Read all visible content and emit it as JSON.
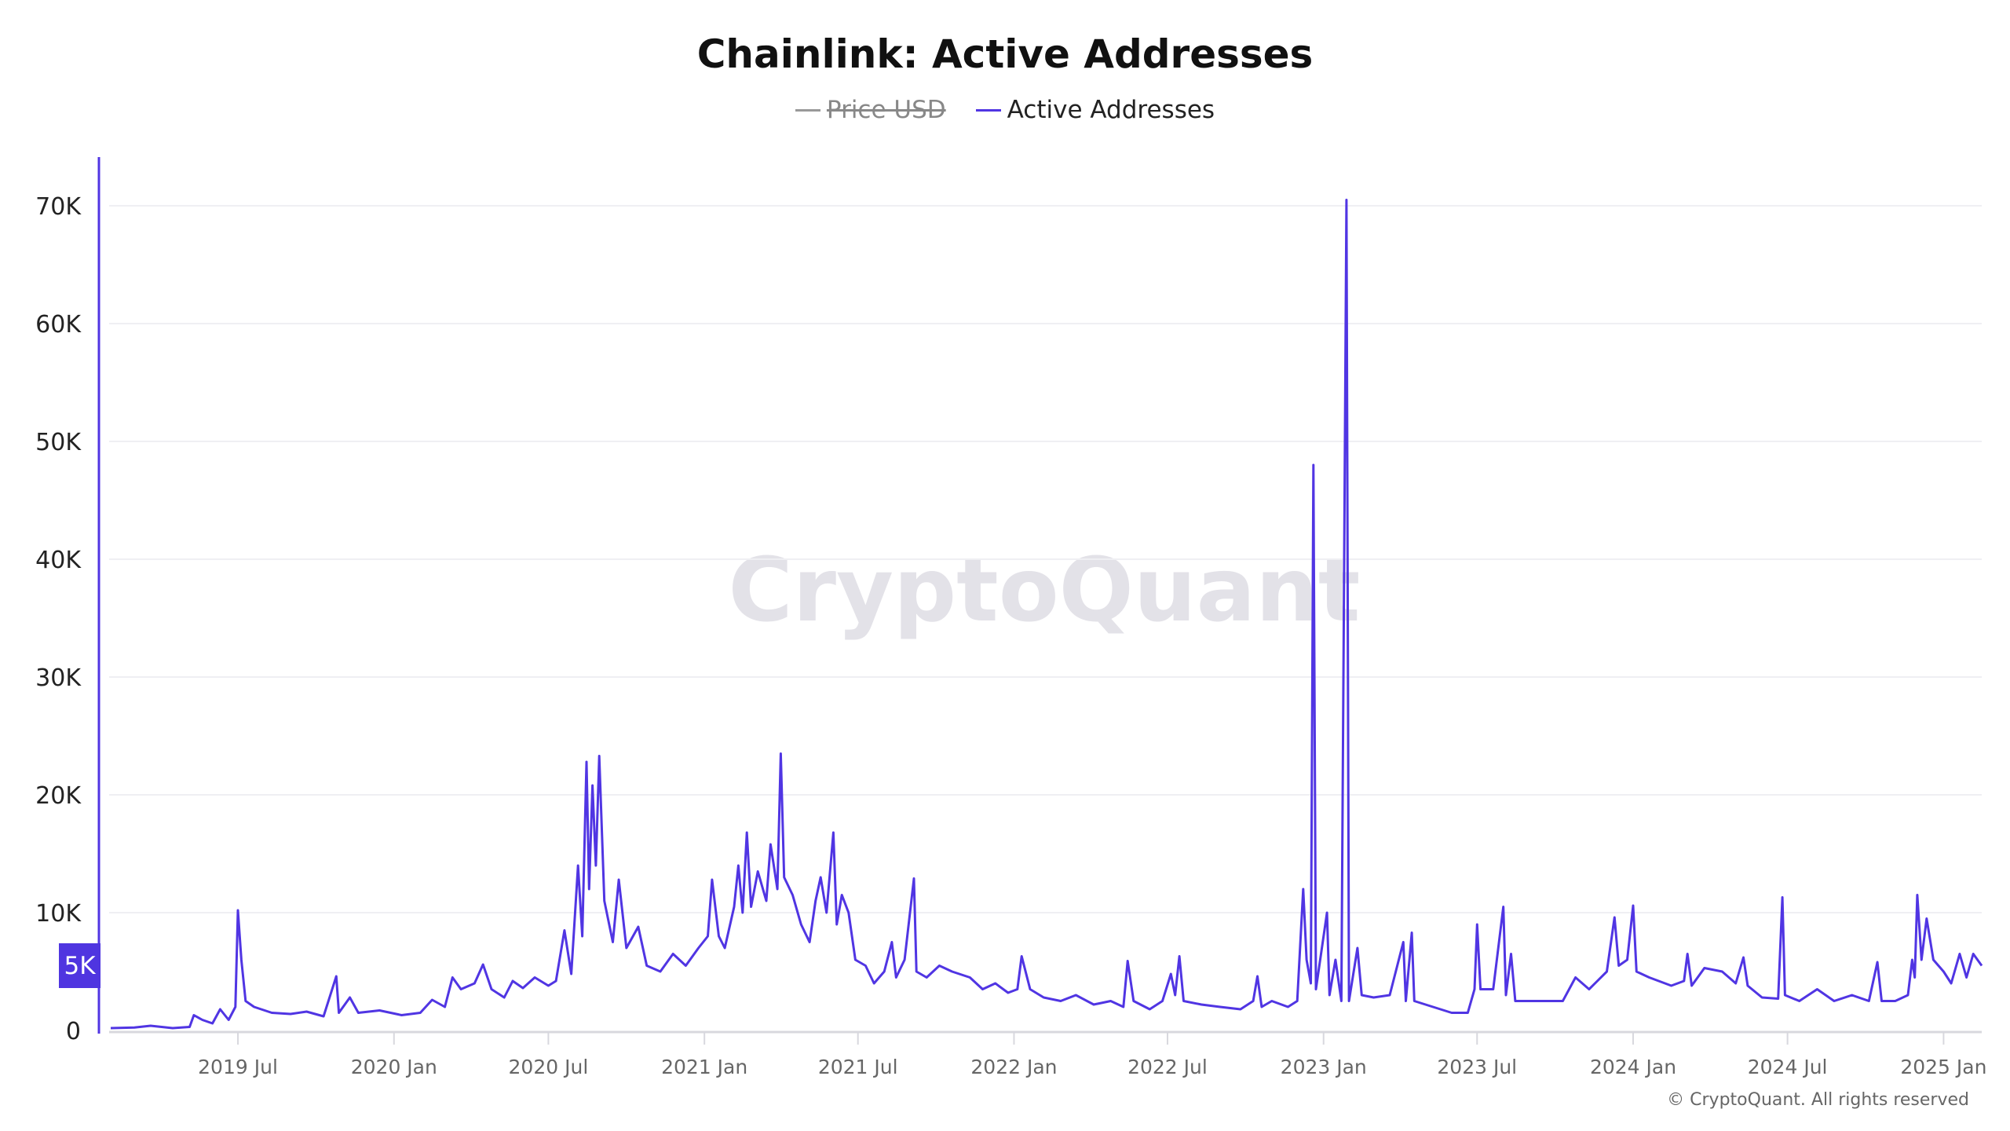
{
  "chart_data": {
    "type": "line",
    "title": "Chainlink: Active Addresses",
    "legend": [
      {
        "name": "Price USD",
        "color": "#999999",
        "hidden": true
      },
      {
        "name": "Active Addresses",
        "color": "#5035e3",
        "hidden": false
      }
    ],
    "legend_placement": "top-center",
    "xlabel": "",
    "ylabel": "",
    "ylim": [
      0,
      70000
    ],
    "yticks": [
      0,
      10000,
      20000,
      30000,
      40000,
      50000,
      60000,
      70000
    ],
    "ytick_labels": [
      "0",
      "10K",
      "20K",
      "30K",
      "40K",
      "50K",
      "60K",
      "70K"
    ],
    "xlim": [
      "2019-02-01",
      "2025-02-15"
    ],
    "xticks": [
      "2019-07-01",
      "2020-01-01",
      "2020-07-01",
      "2021-01-01",
      "2021-07-01",
      "2022-01-01",
      "2022-07-01",
      "2023-01-01",
      "2023-07-01",
      "2024-01-01",
      "2024-07-01",
      "2025-01-01"
    ],
    "xtick_labels": [
      "2019 Jul",
      "2020 Jan",
      "2020 Jul",
      "2021 Jan",
      "2021 Jul",
      "2022 Jan",
      "2022 Jul",
      "2023 Jan",
      "2023 Jul",
      "2024 Jan",
      "2024 Jul",
      "2025 Jan"
    ],
    "grid": true,
    "cursor_value_label": "5K",
    "watermark": "CryptoQuant",
    "series": [
      {
        "name": "Active Addresses",
        "color": "#5035e3",
        "points": [
          [
            "2019-02-01",
            200
          ],
          [
            "2019-03-01",
            250
          ],
          [
            "2019-03-20",
            400
          ],
          [
            "2019-04-15",
            200
          ],
          [
            "2019-05-05",
            300
          ],
          [
            "2019-05-10",
            1300
          ],
          [
            "2019-05-20",
            900
          ],
          [
            "2019-06-01",
            600
          ],
          [
            "2019-06-10",
            1800
          ],
          [
            "2019-06-20",
            900
          ],
          [
            "2019-06-28",
            2000
          ],
          [
            "2019-07-01",
            10200
          ],
          [
            "2019-07-05",
            6000
          ],
          [
            "2019-07-10",
            2500
          ],
          [
            "2019-07-20",
            2000
          ],
          [
            "2019-08-10",
            1500
          ],
          [
            "2019-09-01",
            1400
          ],
          [
            "2019-09-20",
            1600
          ],
          [
            "2019-10-10",
            1200
          ],
          [
            "2019-10-25",
            4600
          ],
          [
            "2019-10-28",
            1500
          ],
          [
            "2019-11-10",
            2800
          ],
          [
            "2019-11-20",
            1500
          ],
          [
            "2019-12-15",
            1700
          ],
          [
            "2020-01-10",
            1300
          ],
          [
            "2020-02-01",
            1500
          ],
          [
            "2020-02-15",
            2600
          ],
          [
            "2020-03-01",
            2000
          ],
          [
            "2020-03-10",
            4500
          ],
          [
            "2020-03-20",
            3500
          ],
          [
            "2020-04-05",
            4000
          ],
          [
            "2020-04-15",
            5600
          ],
          [
            "2020-04-25",
            3500
          ],
          [
            "2020-05-10",
            2800
          ],
          [
            "2020-05-20",
            4200
          ],
          [
            "2020-06-01",
            3600
          ],
          [
            "2020-06-15",
            4500
          ],
          [
            "2020-07-01",
            3800
          ],
          [
            "2020-07-10",
            4200
          ],
          [
            "2020-07-20",
            8500
          ],
          [
            "2020-07-28",
            4800
          ],
          [
            "2020-08-05",
            14000
          ],
          [
            "2020-08-10",
            8000
          ],
          [
            "2020-08-15",
            22800
          ],
          [
            "2020-08-18",
            12000
          ],
          [
            "2020-08-22",
            20800
          ],
          [
            "2020-08-26",
            14000
          ],
          [
            "2020-08-30",
            23300
          ],
          [
            "2020-09-05",
            11000
          ],
          [
            "2020-09-15",
            7500
          ],
          [
            "2020-09-22",
            12800
          ],
          [
            "2020-10-01",
            7000
          ],
          [
            "2020-10-15",
            8800
          ],
          [
            "2020-10-25",
            5500
          ],
          [
            "2020-11-10",
            5000
          ],
          [
            "2020-11-25",
            6500
          ],
          [
            "2020-12-10",
            5500
          ],
          [
            "2020-12-25",
            7000
          ],
          [
            "2021-01-05",
            8000
          ],
          [
            "2021-01-10",
            12800
          ],
          [
            "2021-01-18",
            8000
          ],
          [
            "2021-01-25",
            7000
          ],
          [
            "2021-02-05",
            10500
          ],
          [
            "2021-02-10",
            14000
          ],
          [
            "2021-02-15",
            10000
          ],
          [
            "2021-02-20",
            16800
          ],
          [
            "2021-02-25",
            10500
          ],
          [
            "2021-03-05",
            13500
          ],
          [
            "2021-03-15",
            11000
          ],
          [
            "2021-03-20",
            15800
          ],
          [
            "2021-03-28",
            12000
          ],
          [
            "2021-04-01",
            23500
          ],
          [
            "2021-04-05",
            13000
          ],
          [
            "2021-04-15",
            11500
          ],
          [
            "2021-04-25",
            9000
          ],
          [
            "2021-05-05",
            7500
          ],
          [
            "2021-05-12",
            11000
          ],
          [
            "2021-05-18",
            13000
          ],
          [
            "2021-05-25",
            10000
          ],
          [
            "2021-06-02",
            16800
          ],
          [
            "2021-06-06",
            9000
          ],
          [
            "2021-06-12",
            11500
          ],
          [
            "2021-06-20",
            10000
          ],
          [
            "2021-06-28",
            6000
          ],
          [
            "2021-07-10",
            5500
          ],
          [
            "2021-07-20",
            4000
          ],
          [
            "2021-08-01",
            5000
          ],
          [
            "2021-08-10",
            7500
          ],
          [
            "2021-08-15",
            4500
          ],
          [
            "2021-08-25",
            6000
          ],
          [
            "2021-09-05",
            12900
          ],
          [
            "2021-09-08",
            5000
          ],
          [
            "2021-09-20",
            4500
          ],
          [
            "2021-10-05",
            5500
          ],
          [
            "2021-10-20",
            5000
          ],
          [
            "2021-11-10",
            4500
          ],
          [
            "2021-11-25",
            3500
          ],
          [
            "2021-12-10",
            4000
          ],
          [
            "2021-12-25",
            3200
          ],
          [
            "2022-01-05",
            3500
          ],
          [
            "2022-01-10",
            6300
          ],
          [
            "2022-01-20",
            3500
          ],
          [
            "2022-02-05",
            2800
          ],
          [
            "2022-02-25",
            2500
          ],
          [
            "2022-03-15",
            3000
          ],
          [
            "2022-04-05",
            2200
          ],
          [
            "2022-04-25",
            2500
          ],
          [
            "2022-05-10",
            2000
          ],
          [
            "2022-05-15",
            5900
          ],
          [
            "2022-05-22",
            2500
          ],
          [
            "2022-06-10",
            1800
          ],
          [
            "2022-06-25",
            2500
          ],
          [
            "2022-07-05",
            4800
          ],
          [
            "2022-07-10",
            3000
          ],
          [
            "2022-07-15",
            6300
          ],
          [
            "2022-07-20",
            2500
          ],
          [
            "2022-08-10",
            2200
          ],
          [
            "2022-09-01",
            2000
          ],
          [
            "2022-09-25",
            1800
          ],
          [
            "2022-10-10",
            2500
          ],
          [
            "2022-10-15",
            4600
          ],
          [
            "2022-10-20",
            2000
          ],
          [
            "2022-11-01",
            2500
          ],
          [
            "2022-11-20",
            2000
          ],
          [
            "2022-12-01",
            2500
          ],
          [
            "2022-12-08",
            12000
          ],
          [
            "2022-12-12",
            6000
          ],
          [
            "2022-12-17",
            4000
          ],
          [
            "2022-12-20",
            48000
          ],
          [
            "2022-12-23",
            3500
          ],
          [
            "2023-01-05",
            10000
          ],
          [
            "2023-01-08",
            3000
          ],
          [
            "2023-01-15",
            6000
          ],
          [
            "2023-01-22",
            2500
          ],
          [
            "2023-01-28",
            70500
          ],
          [
            "2023-01-31",
            2500
          ],
          [
            "2023-02-10",
            7000
          ],
          [
            "2023-02-15",
            3000
          ],
          [
            "2023-03-01",
            2800
          ],
          [
            "2023-03-20",
            3000
          ],
          [
            "2023-04-05",
            7500
          ],
          [
            "2023-04-08",
            2500
          ],
          [
            "2023-04-15",
            8300
          ],
          [
            "2023-04-18",
            2500
          ],
          [
            "2023-05-10",
            2000
          ],
          [
            "2023-06-01",
            1500
          ],
          [
            "2023-06-20",
            1500
          ],
          [
            "2023-06-28",
            3500
          ],
          [
            "2023-07-01",
            9000
          ],
          [
            "2023-07-05",
            3500
          ],
          [
            "2023-07-20",
            3500
          ],
          [
            "2023-08-01",
            10500
          ],
          [
            "2023-08-04",
            3000
          ],
          [
            "2023-08-10",
            6500
          ],
          [
            "2023-08-15",
            2500
          ],
          [
            "2023-09-10",
            2500
          ],
          [
            "2023-10-10",
            2500
          ],
          [
            "2023-10-25",
            4500
          ],
          [
            "2023-11-10",
            3500
          ],
          [
            "2023-12-01",
            5000
          ],
          [
            "2023-12-10",
            9600
          ],
          [
            "2023-12-15",
            5500
          ],
          [
            "2023-12-25",
            6000
          ],
          [
            "2024-01-01",
            10600
          ],
          [
            "2024-01-05",
            5000
          ],
          [
            "2024-01-20",
            4500
          ],
          [
            "2024-02-15",
            3800
          ],
          [
            "2024-03-01",
            4200
          ],
          [
            "2024-03-05",
            6500
          ],
          [
            "2024-03-10",
            3800
          ],
          [
            "2024-03-25",
            5300
          ],
          [
            "2024-04-15",
            5000
          ],
          [
            "2024-05-01",
            4000
          ],
          [
            "2024-05-10",
            6200
          ],
          [
            "2024-05-15",
            3800
          ],
          [
            "2024-06-01",
            2800
          ],
          [
            "2024-06-20",
            2700
          ],
          [
            "2024-06-25",
            11300
          ],
          [
            "2024-06-28",
            3000
          ],
          [
            "2024-07-15",
            2500
          ],
          [
            "2024-08-05",
            3500
          ],
          [
            "2024-08-25",
            2500
          ],
          [
            "2024-09-15",
            3000
          ],
          [
            "2024-10-05",
            2500
          ],
          [
            "2024-10-15",
            5800
          ],
          [
            "2024-10-20",
            2500
          ],
          [
            "2024-11-05",
            2500
          ],
          [
            "2024-11-20",
            3000
          ],
          [
            "2024-11-25",
            6000
          ],
          [
            "2024-11-28",
            4500
          ],
          [
            "2024-12-01",
            11500
          ],
          [
            "2024-12-06",
            6000
          ],
          [
            "2024-12-12",
            9500
          ],
          [
            "2024-12-20",
            6000
          ],
          [
            "2025-01-01",
            5000
          ],
          [
            "2025-01-10",
            4000
          ],
          [
            "2025-01-20",
            6500
          ],
          [
            "2025-01-28",
            4500
          ],
          [
            "2025-02-05",
            6500
          ],
          [
            "2025-02-15",
            5500
          ]
        ]
      }
    ]
  },
  "footer": {
    "copyright": "© CryptoQuant. All rights reserved"
  }
}
